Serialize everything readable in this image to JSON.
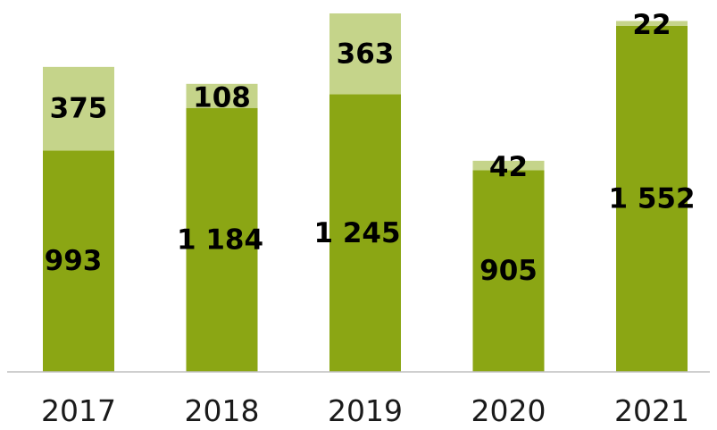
{
  "chart_data": {
    "type": "bar",
    "stacked": true,
    "categories": [
      "2017",
      "2018",
      "2019",
      "2020",
      "2021"
    ],
    "series": [
      {
        "values": [
          993,
          1184,
          1245,
          905,
          1552
        ],
        "labels": [
          "993",
          "1 184",
          "1 245",
          "905",
          "1 552"
        ],
        "color": "#8ba614"
      },
      {
        "values": [
          375,
          108,
          363,
          42,
          22
        ],
        "labels": [
          "375",
          "108",
          "363",
          "42",
          "22"
        ],
        "color": "#c5d48a"
      }
    ],
    "ylim": [
      0,
      1608
    ],
    "grid": false,
    "legend": "none",
    "axis_color": "#bfbfbf"
  }
}
